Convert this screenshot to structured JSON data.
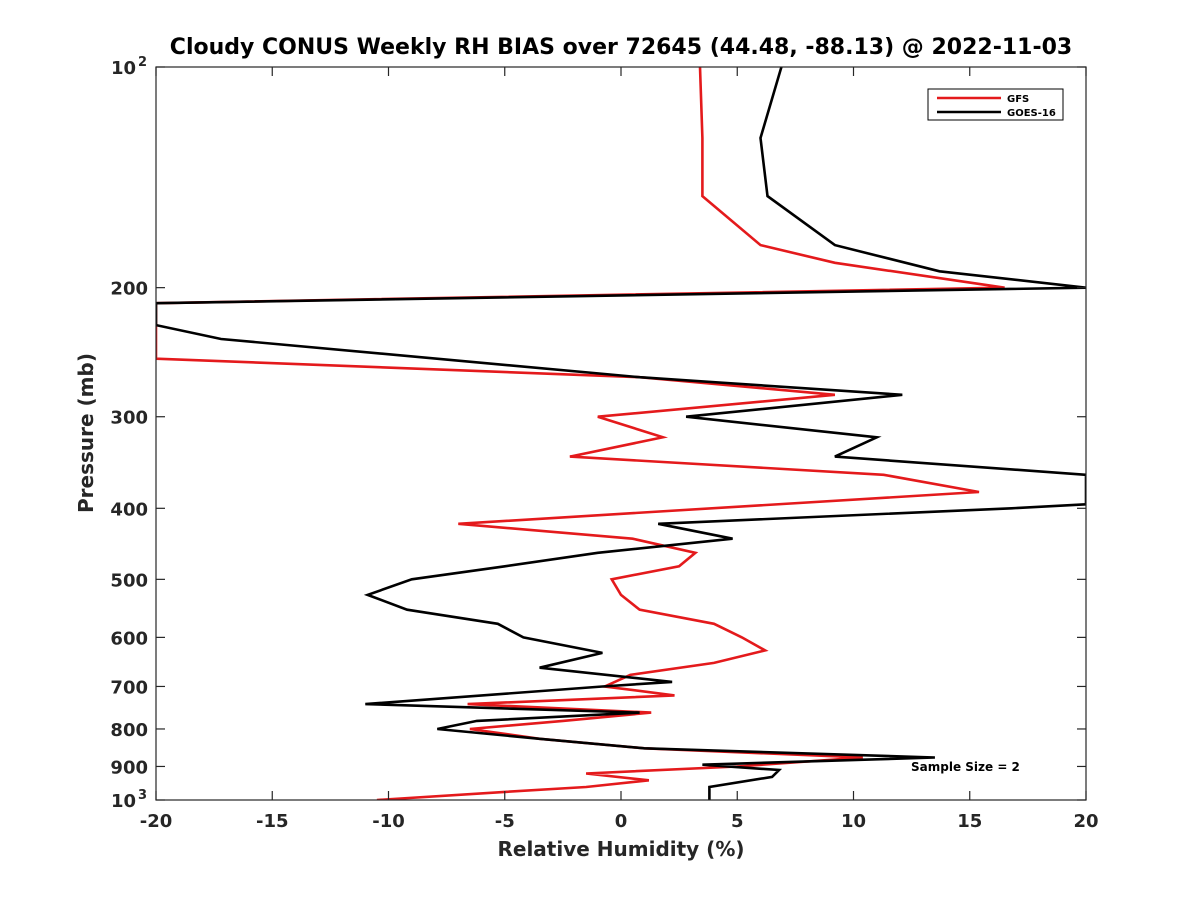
{
  "chart_data": {
    "type": "line",
    "title": "Cloudy CONUS Weekly RH BIAS over 72645 (44.48, -88.13) @ 2022-11-03",
    "xlabel": "Relative Humidity (%)",
    "ylabel": "Pressure (mb)",
    "xlim": [
      -20,
      20
    ],
    "ylim": [
      100,
      1000
    ],
    "y_scale": "log",
    "y_reversed": true,
    "grid": false,
    "legend_position": "top-right",
    "x_ticks": [
      "-20",
      "-15",
      "-10",
      "-5",
      "0",
      "5",
      "10",
      "15",
      "20"
    ],
    "y_ticks": [
      {
        "value": 100,
        "base": "10",
        "exp": "2"
      },
      {
        "value": 200,
        "label": "200"
      },
      {
        "value": 300,
        "label": "300"
      },
      {
        "value": 400,
        "label": "400"
      },
      {
        "value": 500,
        "label": "500"
      },
      {
        "value": 600,
        "label": "600"
      },
      {
        "value": 700,
        "label": "700"
      },
      {
        "value": 800,
        "label": "800"
      },
      {
        "value": 900,
        "label": "900"
      },
      {
        "value": 1000,
        "base": "10",
        "exp": "3"
      }
    ],
    "annotation": "Sample Size = 2",
    "series": [
      {
        "name": "GFS",
        "color": "#e41a1c",
        "points": [
          [
            3.4,
            100
          ],
          [
            3.5,
            125
          ],
          [
            3.5,
            150
          ],
          [
            6.0,
            175
          ],
          [
            9.2,
            185
          ],
          [
            16.5,
            200
          ],
          [
            -20,
            210
          ],
          [
            -20,
            250
          ],
          [
            0.8,
            265
          ],
          [
            9.2,
            280
          ],
          [
            -1.0,
            300
          ],
          [
            1.8,
            320
          ],
          [
            -2.2,
            340
          ],
          [
            11.3,
            360
          ],
          [
            15.4,
            380
          ],
          [
            -7.0,
            420
          ],
          [
            0.5,
            440
          ],
          [
            3.2,
            460
          ],
          [
            2.5,
            480
          ],
          [
            -0.4,
            500
          ],
          [
            0.0,
            525
          ],
          [
            0.8,
            550
          ],
          [
            4.0,
            575
          ],
          [
            5.2,
            600
          ],
          [
            6.2,
            625
          ],
          [
            4.0,
            650
          ],
          [
            0.4,
            675
          ],
          [
            -0.7,
            700
          ],
          [
            2.3,
            720
          ],
          [
            -6.6,
            740
          ],
          [
            1.3,
            760
          ],
          [
            -2.5,
            780
          ],
          [
            -6.5,
            800
          ],
          [
            -3.5,
            825
          ],
          [
            1.0,
            850
          ],
          [
            10.4,
            875
          ],
          [
            5.0,
            900
          ],
          [
            -1.5,
            920
          ],
          [
            1.2,
            940
          ],
          [
            -1.5,
            960
          ],
          [
            -5.0,
            975
          ],
          [
            -10.5,
            1000
          ]
        ]
      },
      {
        "name": "GOES-16",
        "color": "#000000",
        "points": [
          [
            6.9,
            100
          ],
          [
            6.0,
            125
          ],
          [
            6.3,
            150
          ],
          [
            9.2,
            175
          ],
          [
            13.7,
            190
          ],
          [
            20.0,
            200
          ],
          [
            -20.0,
            210
          ],
          [
            -20.0,
            225
          ],
          [
            -17.2,
            235
          ],
          [
            0.8,
            265
          ],
          [
            12.1,
            280
          ],
          [
            2.8,
            300
          ],
          [
            11.0,
            320
          ],
          [
            9.2,
            340
          ],
          [
            20.0,
            360
          ],
          [
            20.0,
            395
          ],
          [
            16.8,
            400
          ],
          [
            1.6,
            420
          ],
          [
            4.8,
            440
          ],
          [
            -1.0,
            460
          ],
          [
            -5.0,
            480
          ],
          [
            -9.0,
            500
          ],
          [
            -10.9,
            525
          ],
          [
            -9.2,
            550
          ],
          [
            -5.3,
            575
          ],
          [
            -4.2,
            600
          ],
          [
            -0.8,
            630
          ],
          [
            -3.5,
            660
          ],
          [
            2.2,
            690
          ],
          [
            -0.8,
            700
          ],
          [
            -11.0,
            740
          ],
          [
            0.8,
            760
          ],
          [
            -6.2,
            780
          ],
          [
            -7.9,
            800
          ],
          [
            -3.5,
            825
          ],
          [
            1.0,
            850
          ],
          [
            13.5,
            875
          ],
          [
            11.0,
            880
          ],
          [
            3.5,
            895
          ],
          [
            6.8,
            910
          ],
          [
            6.5,
            930
          ],
          [
            3.8,
            960
          ],
          [
            3.8,
            1000
          ]
        ]
      }
    ]
  }
}
